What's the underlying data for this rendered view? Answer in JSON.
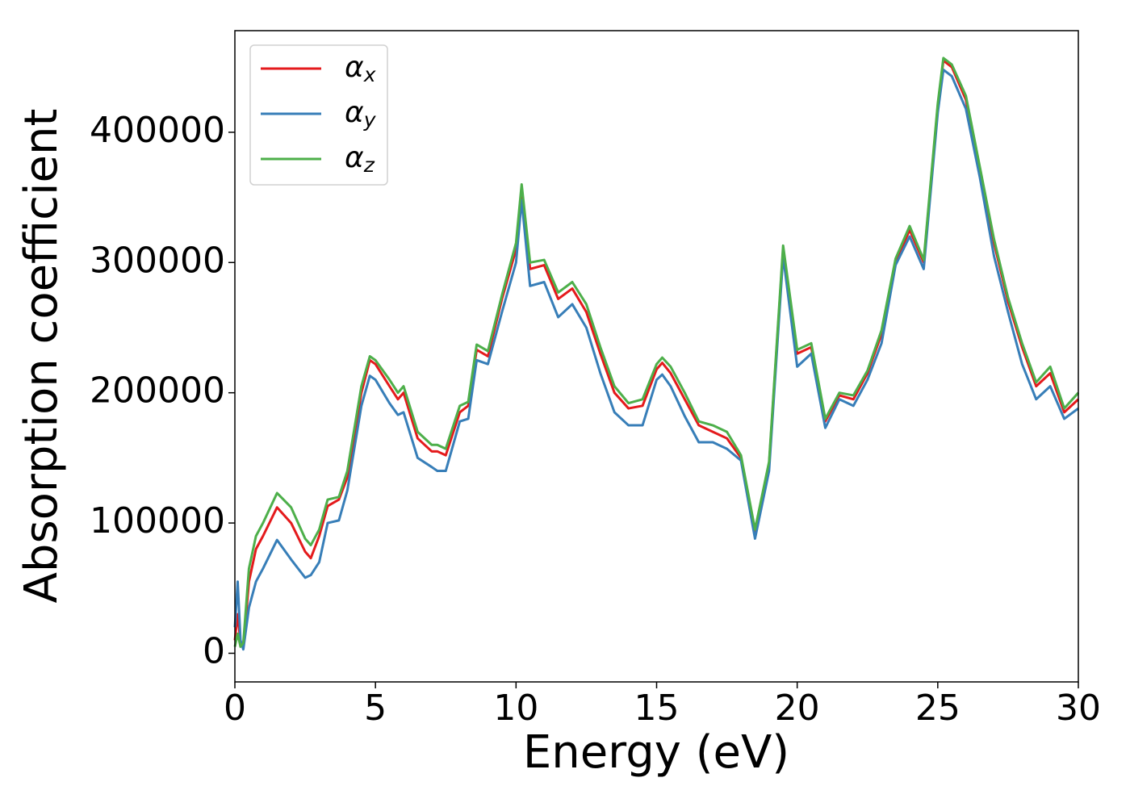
{
  "chart_data": {
    "type": "line",
    "xlabel": "Energy (eV)",
    "ylabel": "Absorption coefficient",
    "x": [
      0,
      0.1,
      0.2,
      0.3,
      0.5,
      0.75,
      1,
      1.5,
      2,
      2.5,
      2.7,
      3,
      3.3,
      3.7,
      4,
      4.5,
      4.8,
      5,
      5.5,
      5.8,
      6,
      6.5,
      7,
      7.2,
      7.5,
      8,
      8.3,
      8.6,
      9,
      9.5,
      10,
      10.2,
      10.5,
      11,
      11.5,
      12,
      12.5,
      13,
      13.5,
      14,
      14.5,
      15,
      15.2,
      15.5,
      16,
      16.5,
      17,
      17.5,
      18,
      18.5,
      19,
      19.5,
      20,
      20.5,
      21,
      21.5,
      22,
      22.5,
      23,
      23.5,
      24,
      24.5,
      25,
      25.2,
      25.5,
      26,
      26.5,
      27,
      27.5,
      28,
      28.5,
      29,
      29.5,
      30
    ],
    "series": [
      {
        "name": "αx",
        "color": "#e41a1c",
        "values": [
          10000,
          30000,
          8000,
          5000,
          55000,
          80000,
          90000,
          112000,
          100000,
          78000,
          73000,
          90000,
          113000,
          118000,
          135000,
          200000,
          225000,
          222000,
          205000,
          195000,
          200000,
          165000,
          155000,
          155000,
          152000,
          185000,
          190000,
          233000,
          228000,
          272000,
          310000,
          355000,
          295000,
          298000,
          272000,
          280000,
          262000,
          230000,
          200000,
          188000,
          190000,
          218000,
          223000,
          215000,
          195000,
          175000,
          170000,
          165000,
          150000,
          93000,
          145000,
          310000,
          230000,
          235000,
          178000,
          198000,
          195000,
          215000,
          245000,
          300000,
          325000,
          300000,
          420000,
          455000,
          450000,
          425000,
          370000,
          315000,
          270000,
          235000,
          205000,
          215000,
          185000,
          195000
        ]
      },
      {
        "name": "αy",
        "color": "#377eb8",
        "values": [
          20000,
          55000,
          10000,
          3000,
          35000,
          55000,
          65000,
          87000,
          72000,
          58000,
          60000,
          70000,
          100000,
          102000,
          125000,
          190000,
          213000,
          210000,
          192000,
          183000,
          185000,
          150000,
          143000,
          140000,
          140000,
          178000,
          180000,
          225000,
          222000,
          262000,
          300000,
          348000,
          282000,
          285000,
          258000,
          268000,
          250000,
          215000,
          185000,
          175000,
          175000,
          210000,
          214000,
          205000,
          182000,
          162000,
          162000,
          157000,
          148000,
          88000,
          140000,
          305000,
          220000,
          230000,
          173000,
          195000,
          190000,
          210000,
          238000,
          298000,
          320000,
          295000,
          415000,
          448000,
          443000,
          418000,
          365000,
          305000,
          262000,
          222000,
          195000,
          205000,
          180000,
          188000
        ]
      },
      {
        "name": "αz",
        "color": "#4daf4a",
        "values": [
          5000,
          15000,
          5000,
          8000,
          65000,
          90000,
          100000,
          123000,
          112000,
          88000,
          83000,
          95000,
          118000,
          120000,
          140000,
          205000,
          228000,
          225000,
          210000,
          200000,
          205000,
          170000,
          160000,
          160000,
          157000,
          190000,
          193000,
          237000,
          232000,
          275000,
          315000,
          360000,
          300000,
          302000,
          277000,
          285000,
          268000,
          235000,
          205000,
          192000,
          195000,
          222000,
          227000,
          220000,
          200000,
          178000,
          175000,
          170000,
          152000,
          95000,
          147000,
          313000,
          233000,
          238000,
          180000,
          200000,
          198000,
          217000,
          248000,
          303000,
          328000,
          302000,
          422000,
          457000,
          452000,
          428000,
          373000,
          318000,
          273000,
          238000,
          208000,
          220000,
          188000,
          200000
        ]
      }
    ],
    "xlim": [
      0,
      30
    ],
    "xticks": [
      0,
      5,
      10,
      15,
      20,
      25,
      30
    ],
    "ylim": [
      -22000,
      478000
    ],
    "yticks": [
      0,
      100000,
      200000,
      300000,
      400000
    ],
    "legend": "upper left"
  }
}
